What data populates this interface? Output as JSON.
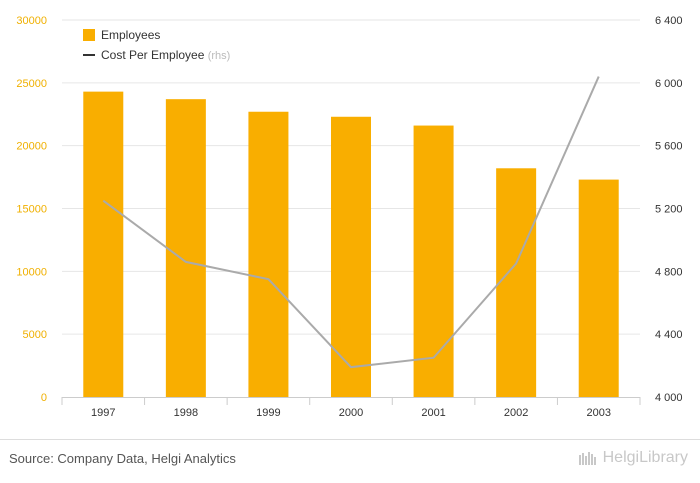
{
  "chart_data": {
    "type": "bar",
    "categories": [
      "1997",
      "1998",
      "1999",
      "2000",
      "2001",
      "2002",
      "2003"
    ],
    "series": [
      {
        "name": "Employees",
        "type": "bar",
        "axis": "left",
        "color": "#f9ae00",
        "values": [
          24300,
          23700,
          22700,
          22300,
          21600,
          18200,
          17300
        ]
      },
      {
        "name": "Cost Per Employee",
        "name_suffix": "(rhs)",
        "type": "line",
        "axis": "right",
        "color": "#aaaaaa",
        "values": [
          5250,
          4860,
          4750,
          4190,
          4250,
          4850,
          6040
        ]
      }
    ],
    "y_left": {
      "ylim": [
        0,
        30000
      ],
      "ticks": [
        "30000",
        "25000",
        "20000",
        "15000",
        "10000",
        "5000",
        "0"
      ]
    },
    "y_right": {
      "ylim": [
        4000,
        6400
      ],
      "ticks": [
        "6 400",
        "6 000",
        "5 600",
        "5 200",
        "4 800",
        "4 400",
        "4 000"
      ]
    },
    "grid": true,
    "legend_position": "top-left"
  },
  "footer": {
    "source": "Source: Company Data, Helgi Analytics",
    "brand": "HelgiLibrary"
  }
}
